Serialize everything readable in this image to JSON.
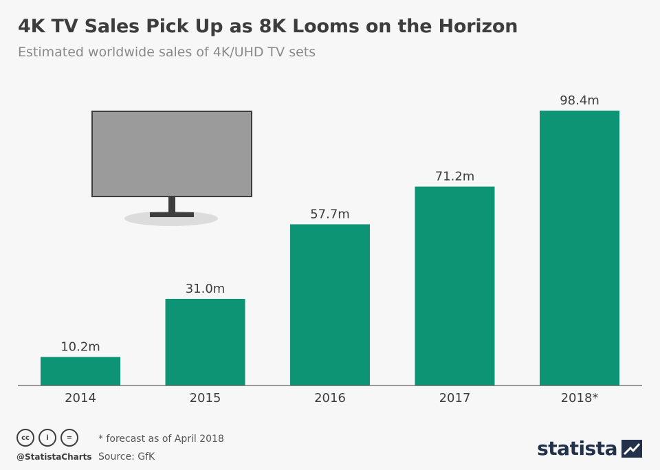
{
  "header": {
    "title": "4K TV Sales Pick Up as 8K Looms on the Horizon",
    "subtitle": "Estimated worldwide sales of 4K/UHD TV sets"
  },
  "chart_data": {
    "type": "bar",
    "title": "4K TV Sales Pick Up as 8K Looms on the Horizon",
    "subtitle": "Estimated worldwide sales of 4K/UHD TV sets",
    "categories": [
      "2014",
      "2015",
      "2016",
      "2017",
      "2018*"
    ],
    "values": [
      10.2,
      31.0,
      57.7,
      71.2,
      98.4
    ],
    "value_labels": [
      "10.2m",
      "31.0m",
      "57.7m",
      "71.2m",
      "98.4m"
    ],
    "unit": "million units",
    "xlabel": "",
    "ylabel": "",
    "ylim": [
      0,
      98.4
    ],
    "grid": false,
    "bar_color": "#0d9474"
  },
  "illustration": {
    "icon": "tv-icon"
  },
  "footer": {
    "license_icons": [
      "cc-icon",
      "attribution-icon",
      "no-derivatives-icon"
    ],
    "license_glyphs": [
      "cc",
      "i",
      "="
    ],
    "handle": "@StatistaCharts",
    "note": "* forecast as of April 2018",
    "source": "Source: GfK",
    "logo_text": "statista"
  },
  "colors": {
    "bar": "#0d9474",
    "title": "#3d3d3d",
    "subtitle": "#8a8a8a",
    "background": "#f7f7f7",
    "logo": "#23324a"
  }
}
